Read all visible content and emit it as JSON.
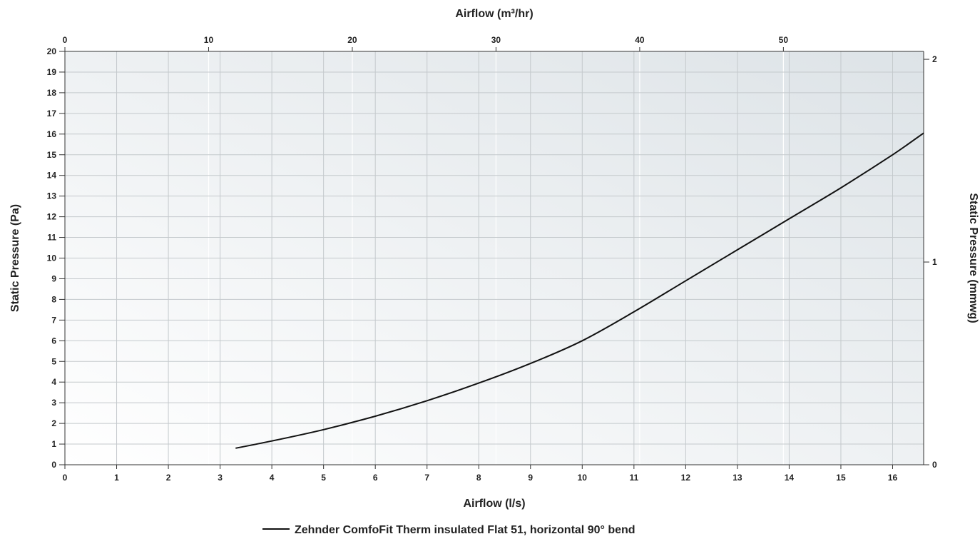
{
  "chart_data": {
    "type": "line",
    "title": "",
    "xlabel": "Airflow (l/s)",
    "ylabel": "Static Pressure (Pa)",
    "x2label": "Airflow (m³/hr)",
    "y2label": "Static Pressure (mmwg)",
    "xlim": [
      0,
      16.6
    ],
    "ylim": [
      0,
      20
    ],
    "x2lim": [
      0,
      59.76
    ],
    "y2lim": [
      0,
      2.039
    ],
    "xticks": [
      0,
      1,
      2,
      3,
      4,
      5,
      6,
      7,
      8,
      9,
      10,
      11,
      12,
      13,
      14,
      15,
      16
    ],
    "yticks": [
      0,
      1,
      2,
      3,
      4,
      5,
      6,
      7,
      8,
      9,
      10,
      11,
      12,
      13,
      14,
      15,
      16,
      17,
      18,
      19,
      20
    ],
    "x2ticks": [
      0,
      10,
      20,
      30,
      40,
      50
    ],
    "y2ticks": [
      0,
      1,
      2
    ],
    "grid": true,
    "legend_position": "bottom-center",
    "series": [
      {
        "name": "Zehnder ComfoFit Therm insulated Flat 51, horizontal 90° bend",
        "color": "#111111",
        "x": [
          3.3,
          4,
          5,
          6,
          7,
          8,
          9,
          10,
          11,
          12,
          13,
          14,
          15,
          16,
          16.6
        ],
        "y": [
          0.8,
          1.15,
          1.7,
          2.35,
          3.1,
          3.95,
          4.9,
          6.0,
          7.4,
          8.9,
          10.4,
          11.9,
          13.4,
          15.0,
          16.05
        ]
      }
    ]
  }
}
